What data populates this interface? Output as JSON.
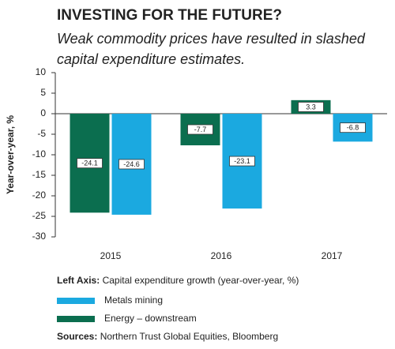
{
  "chart_data": {
    "type": "bar",
    "title": "INVESTING FOR THE FUTURE?",
    "subtitle": [
      "Weak commodity prices have resulted in slashed",
      "capital expenditure estimates."
    ],
    "y_label": "Year-over-year, %",
    "categories": [
      "2015",
      "2016",
      "2017"
    ],
    "series": [
      {
        "name": "Energy – downstream",
        "color": "#0b6e4f",
        "values": [
          -24.1,
          -7.7,
          3.3
        ]
      },
      {
        "name": "Metals mining",
        "color": "#1ba9e0",
        "values": [
          -24.6,
          -23.1,
          -6.8
        ]
      }
    ],
    "ylim": [
      -30,
      10
    ],
    "yticks": [
      10,
      5,
      0,
      -5,
      -10,
      -15,
      -20,
      -25,
      -30
    ],
    "left_axis_label": "Left Axis:",
    "left_axis_text": "Capital expenditure growth (year-over-year, %)",
    "sources_label": "Sources:",
    "sources_text": "Northern Trust Global Equities, Bloomberg"
  }
}
